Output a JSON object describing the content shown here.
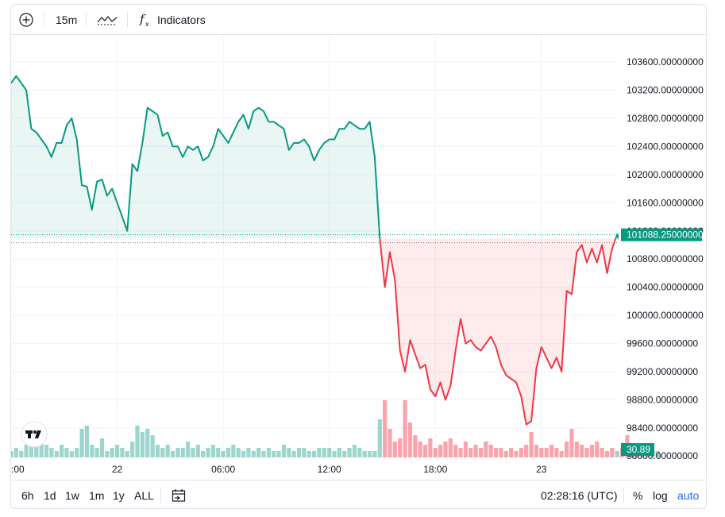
{
  "toolbar": {
    "interval": "15m",
    "indicators_label": "Indicators"
  },
  "bottombar": {
    "ranges": [
      "6h",
      "1d",
      "1w",
      "1m",
      "1y",
      "ALL"
    ],
    "clock": "02:28:16 (UTC)",
    "percent": "%",
    "log": "log",
    "auto": "auto"
  },
  "colors": {
    "up": "#089981",
    "down": "#f23645",
    "auto": "#2962ff"
  },
  "chart_data": {
    "type": "area",
    "baseline": 101088.25,
    "last_price_label": "101088.25000000",
    "volume_label": "30.89",
    "ylim": [
      97850,
      104000
    ],
    "y_ticks": [
      103600,
      103200,
      102800,
      102400,
      102000,
      101600,
      101200,
      100800,
      100400,
      100000,
      99600,
      99200,
      98800,
      98400
    ],
    "y_tick_labels": [
      "103600.00000000",
      "103200.00000000",
      "102800.00000000",
      "102400.00000000",
      "102000.00000000",
      "101600.00000000",
      "101200.00000000",
      "100800.00000000",
      "100400.00000000",
      "100000.00000000",
      "99600.00000000",
      "99200.00000000",
      "98800.00000000",
      "98400.00000000"
    ],
    "y_bottom_label": "98000.00000000",
    "time_labels": [
      {
        "label": ":00",
        "i": 0
      },
      {
        "label": "22",
        "i": 21
      },
      {
        "label": "06:00",
        "i": 42
      },
      {
        "label": "12:00",
        "i": 63
      },
      {
        "label": "18:00",
        "i": 84
      },
      {
        "label": "23",
        "i": 105
      }
    ],
    "prices": [
      103300,
      103400,
      103300,
      103200,
      102650,
      102600,
      102500,
      102400,
      102250,
      102450,
      102450,
      102700,
      102800,
      102500,
      101850,
      101830,
      101500,
      101900,
      101930,
      101700,
      101800,
      101600,
      101400,
      101200,
      102150,
      102050,
      102450,
      102950,
      102900,
      102850,
      102550,
      102600,
      102400,
      102400,
      102250,
      102400,
      102350,
      102400,
      102200,
      102250,
      102400,
      102650,
      102550,
      102450,
      102600,
      102750,
      102850,
      102650,
      102900,
      102950,
      102900,
      102750,
      102750,
      102700,
      102650,
      102350,
      102450,
      102450,
      102500,
      102400,
      102200,
      102350,
      102450,
      102500,
      102500,
      102650,
      102650,
      102750,
      102700,
      102650,
      102650,
      102750,
      102250,
      101100,
      100400,
      100900,
      100500,
      99500,
      99200,
      99650,
      99450,
      99250,
      99300,
      98950,
      98850,
      99050,
      98800,
      99000,
      99500,
      99950,
      99600,
      99650,
      99550,
      99500,
      99600,
      99700,
      99550,
      99300,
      99150,
      99100,
      99050,
      98850,
      98450,
      98500,
      99250,
      99550,
      99400,
      99250,
      99400,
      99200,
      100350,
      100300,
      100900,
      101000,
      100750,
      100950,
      100750,
      101000,
      100600,
      100950,
      101150,
      100950,
      100900,
      100650,
      100950,
      101100,
      101050,
      101100,
      101150
    ],
    "volumes": [
      2,
      3,
      2,
      4,
      5,
      6,
      5,
      4,
      3,
      2,
      4,
      3,
      2,
      3,
      9,
      10,
      4,
      3,
      6,
      2,
      3,
      4,
      3,
      2,
      5,
      10,
      8,
      9,
      7,
      4,
      3,
      4,
      2,
      3,
      3,
      5,
      3,
      4,
      2,
      3,
      4,
      3,
      2,
      3,
      4,
      3,
      2,
      3,
      2,
      3,
      2,
      3,
      2,
      2,
      4,
      3,
      2,
      3,
      3,
      2,
      2,
      3,
      3,
      3,
      2,
      3,
      2,
      3,
      4,
      3,
      2,
      2,
      2,
      12,
      18,
      9,
      5,
      6,
      18,
      11,
      7,
      5,
      4,
      6,
      3,
      4,
      5,
      6,
      4,
      3,
      5,
      3,
      4,
      3,
      5,
      4,
      3,
      3,
      2,
      3,
      2,
      3,
      4,
      8,
      4,
      3,
      3,
      4,
      3,
      2,
      5,
      9,
      5,
      4,
      3,
      4,
      5,
      3,
      2,
      3,
      2,
      3,
      7,
      4,
      3,
      3,
      2,
      2,
      2
    ],
    "volume_max": 20
  }
}
